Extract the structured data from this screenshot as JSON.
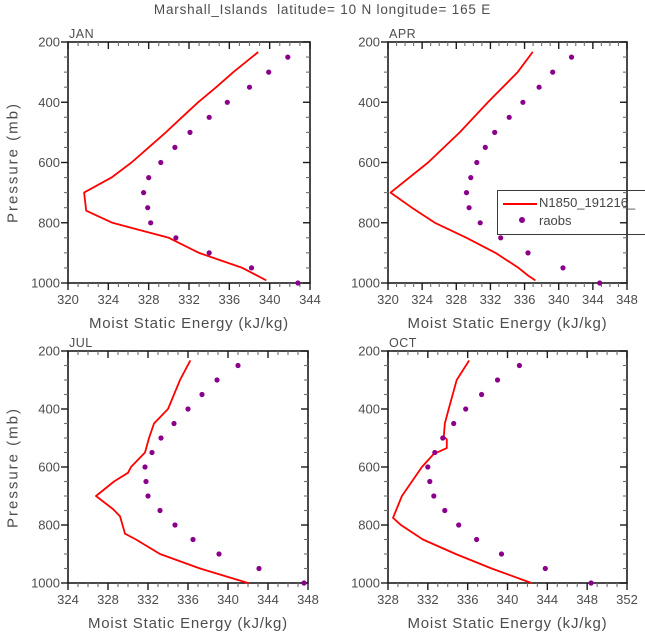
{
  "header": {
    "title": "Marshall_Islands  latitude= 10 N longitude= 165 E"
  },
  "colors": {
    "model_line": "#ff0000",
    "raobs_dot": "#8b008b",
    "frame": "#1c1c1c",
    "minor_tick": "#6e6e6e",
    "text": "#4d4d4d"
  },
  "legend": {
    "position": "overlay-right-of-APR-panel",
    "entries": [
      {
        "label": "N1850_191216_",
        "type": "line",
        "color": "#ff0000"
      },
      {
        "label": "raobs",
        "type": "dot",
        "color": "#8b008b"
      }
    ]
  },
  "chart_data": [
    {
      "type": "line",
      "panel_label": "JAN",
      "xlabel": "Moist Static Energy (kJ/kg)",
      "ylabel": "Pressure (mb)",
      "xlim": [
        320,
        344
      ],
      "xticks": [
        320,
        324,
        328,
        332,
        336,
        340,
        344
      ],
      "x_minor_step": 1,
      "ylim": [
        1000,
        200
      ],
      "yticks": [
        200,
        400,
        600,
        800,
        1000
      ],
      "y_minor_step": 50,
      "grid": false,
      "series": [
        {
          "name": "N1850_191216_",
          "style": "line",
          "color": "#ff0000",
          "points_pressure_value": [
            [
              235,
              338.8
            ],
            [
              300,
              336.4
            ],
            [
              350,
              334.7
            ],
            [
              400,
              332.9
            ],
            [
              450,
              331.3
            ],
            [
              500,
              329.7
            ],
            [
              550,
              328.0
            ],
            [
              600,
              326.3
            ],
            [
              650,
              324.3
            ],
            [
              700,
              321.6
            ],
            [
              760,
              321.8
            ],
            [
              800,
              324.4
            ],
            [
              850,
              330.0
            ],
            [
              900,
              333.0
            ],
            [
              950,
              337.3
            ],
            [
              990,
              339.6
            ]
          ]
        },
        {
          "name": "raobs",
          "style": "scatter",
          "color": "#8b008b",
          "points_pressure_value": [
            [
              250,
              341.8
            ],
            [
              300,
              339.9
            ],
            [
              350,
              338.0
            ],
            [
              400,
              335.8
            ],
            [
              450,
              334.0
            ],
            [
              500,
              332.1
            ],
            [
              550,
              330.6
            ],
            [
              600,
              329.2
            ],
            [
              650,
              328.0
            ],
            [
              700,
              327.5
            ],
            [
              750,
              327.9
            ],
            [
              800,
              328.2
            ],
            [
              850,
              330.7
            ],
            [
              900,
              334.0
            ],
            [
              950,
              338.2
            ],
            [
              1000,
              342.8
            ]
          ]
        }
      ]
    },
    {
      "type": "line",
      "panel_label": "APR",
      "xlabel": "Moist Static Energy (kJ/kg)",
      "ylabel": "",
      "xlim": [
        320,
        348
      ],
      "xticks": [
        320,
        324,
        328,
        332,
        336,
        340,
        344,
        348
      ],
      "x_minor_step": 1,
      "ylim": [
        1000,
        200
      ],
      "yticks": [
        200,
        400,
        600,
        800,
        1000
      ],
      "y_minor_step": 50,
      "grid": false,
      "series": [
        {
          "name": "N1850_191216_",
          "style": "line",
          "color": "#ff0000",
          "points_pressure_value": [
            [
              235,
              336.9
            ],
            [
              300,
              335.2
            ],
            [
              400,
              331.7
            ],
            [
              500,
              328.4
            ],
            [
              600,
              324.7
            ],
            [
              700,
              320.3
            ],
            [
              750,
              322.8
            ],
            [
              800,
              325.5
            ],
            [
              850,
              329.2
            ],
            [
              900,
              332.6
            ],
            [
              950,
              335.3
            ],
            [
              975,
              336.4
            ],
            [
              990,
              337.2
            ]
          ]
        },
        {
          "name": "raobs",
          "style": "scatter",
          "color": "#8b008b",
          "points_pressure_value": [
            [
              250,
              341.5
            ],
            [
              300,
              339.3
            ],
            [
              350,
              337.7
            ],
            [
              400,
              335.8
            ],
            [
              450,
              334.2
            ],
            [
              500,
              332.5
            ],
            [
              550,
              331.4
            ],
            [
              600,
              330.4
            ],
            [
              650,
              329.7
            ],
            [
              700,
              329.2
            ],
            [
              750,
              329.5
            ],
            [
              800,
              330.8
            ],
            [
              850,
              333.2
            ],
            [
              900,
              336.4
            ],
            [
              950,
              340.5
            ],
            [
              1000,
              344.8
            ]
          ]
        }
      ]
    },
    {
      "type": "line",
      "panel_label": "JUL",
      "xlabel": "Moist Static Energy (kJ/kg)",
      "ylabel": "Pressure (mb)",
      "xlim": [
        324,
        348
      ],
      "xticks": [
        324,
        328,
        332,
        336,
        340,
        344,
        348
      ],
      "x_minor_step": 1,
      "ylim": [
        1000,
        200
      ],
      "yticks": [
        200,
        400,
        600,
        800,
        1000
      ],
      "y_minor_step": 50,
      "grid": false,
      "series": [
        {
          "name": "N1850_191216_",
          "style": "line",
          "color": "#ff0000",
          "points_pressure_value": [
            [
              235,
              336.2
            ],
            [
              300,
              335.2
            ],
            [
              400,
              334.0
            ],
            [
              450,
              332.6
            ],
            [
              500,
              332.1
            ],
            [
              550,
              331.7
            ],
            [
              600,
              330.3
            ],
            [
              620,
              330.0
            ],
            [
              650,
              328.6
            ],
            [
              700,
              326.8
            ],
            [
              745,
              328.5
            ],
            [
              770,
              329.2
            ],
            [
              830,
              329.7
            ],
            [
              850,
              330.8
            ],
            [
              900,
              333.2
            ],
            [
              950,
              337.2
            ],
            [
              1000,
              342.0
            ]
          ]
        },
        {
          "name": "raobs",
          "style": "scatter",
          "color": "#8b008b",
          "points_pressure_value": [
            [
              250,
              341.0
            ],
            [
              300,
              338.9
            ],
            [
              350,
              337.4
            ],
            [
              400,
              336.0
            ],
            [
              450,
              334.6
            ],
            [
              500,
              333.3
            ],
            [
              550,
              332.4
            ],
            [
              600,
              331.7
            ],
            [
              650,
              331.8
            ],
            [
              700,
              332.0
            ],
            [
              750,
              333.2
            ],
            [
              800,
              334.7
            ],
            [
              850,
              336.5
            ],
            [
              900,
              339.1
            ],
            [
              950,
              343.1
            ],
            [
              1000,
              347.6
            ]
          ]
        }
      ]
    },
    {
      "type": "line",
      "panel_label": "OCT",
      "xlabel": "Moist Static Energy (kJ/kg)",
      "ylabel": "",
      "xlim": [
        328,
        352
      ],
      "xticks": [
        328,
        332,
        336,
        340,
        344,
        348,
        352
      ],
      "x_minor_step": 1,
      "ylim": [
        1000,
        200
      ],
      "yticks": [
        200,
        400,
        600,
        800,
        1000
      ],
      "y_minor_step": 50,
      "grid": false,
      "series": [
        {
          "name": "N1850_191216_",
          "style": "line",
          "color": "#ff0000",
          "points_pressure_value": [
            [
              235,
              336.1
            ],
            [
              300,
              334.9
            ],
            [
              350,
              334.5
            ],
            [
              400,
              334.1
            ],
            [
              450,
              333.7
            ],
            [
              495,
              333.6
            ],
            [
              505,
              333.9
            ],
            [
              535,
              333.9
            ],
            [
              555,
              332.6
            ],
            [
              600,
              331.4
            ],
            [
              650,
              330.4
            ],
            [
              700,
              329.4
            ],
            [
              750,
              328.8
            ],
            [
              775,
              328.5
            ],
            [
              800,
              329.3
            ],
            [
              850,
              331.5
            ],
            [
              900,
              334.8
            ],
            [
              950,
              338.4
            ],
            [
              1000,
              342.4
            ]
          ]
        },
        {
          "name": "raobs",
          "style": "scatter",
          "color": "#8b008b",
          "points_pressure_value": [
            [
              250,
              341.2
            ],
            [
              300,
              339.0
            ],
            [
              350,
              337.4
            ],
            [
              400,
              335.8
            ],
            [
              450,
              334.6
            ],
            [
              500,
              333.5
            ],
            [
              550,
              332.7
            ],
            [
              600,
              332.0
            ],
            [
              650,
              332.2
            ],
            [
              700,
              332.6
            ],
            [
              750,
              333.7
            ],
            [
              800,
              335.1
            ],
            [
              850,
              336.9
            ],
            [
              900,
              339.4
            ],
            [
              950,
              343.8
            ],
            [
              1000,
              348.4
            ]
          ]
        }
      ]
    }
  ]
}
